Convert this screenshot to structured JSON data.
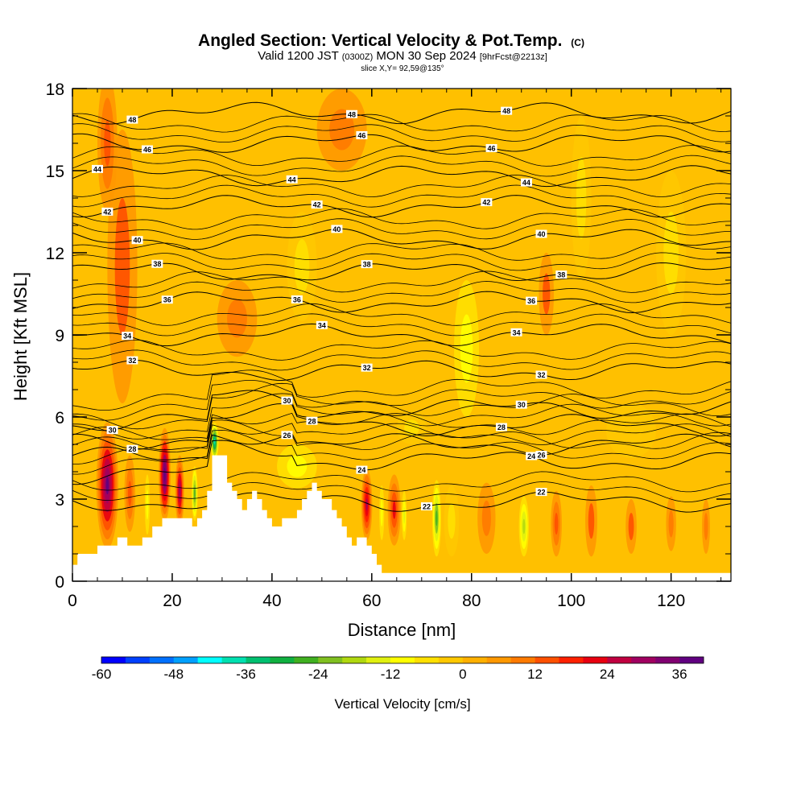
{
  "title": {
    "main": "Angled Section: Vertical Velocity & Pot.Temp.",
    "main_suffix": "(C)",
    "valid_prefix": "Valid 1200 JST",
    "valid_zulu": "(0300Z)",
    "valid_date": "MON 30 Sep 2024",
    "forecast": "[9hrFcst@2213z]",
    "slice": "slice X,Y= 92,59@135°"
  },
  "chart_data": {
    "type": "heatmap",
    "xlabel": "Distance [nm]",
    "ylabel": "Height [Kft MSL]",
    "xlim": [
      0,
      132
    ],
    "ylim": [
      0,
      18
    ],
    "x_ticks": [
      0,
      20,
      40,
      60,
      80,
      100,
      120
    ],
    "y_ticks": [
      0,
      3,
      6,
      9,
      12,
      15,
      18
    ],
    "colorbar": {
      "label": "Vertical Velocity [cm/s]",
      "range": [
        -60,
        40
      ],
      "tick_values": [
        -60,
        -48,
        -36,
        -24,
        -12,
        0,
        12,
        24,
        36
      ],
      "colors": [
        "#0000ff",
        "#0040ff",
        "#0070ff",
        "#00a0ff",
        "#00ffff",
        "#00e0b0",
        "#00c070",
        "#10b040",
        "#40b020",
        "#80c020",
        "#b0d810",
        "#e0f010",
        "#ffff00",
        "#ffe000",
        "#ffc800",
        "#ffb000",
        "#ff9800",
        "#ff7a00",
        "#ff5000",
        "#ff2000",
        "#e80010",
        "#c00040",
        "#a00060",
        "#800070",
        "#600080"
      ]
    },
    "terrain_profile": {
      "x": [
        0,
        1,
        1,
        5,
        5,
        9,
        9,
        11,
        11,
        14,
        14,
        16,
        16,
        18,
        18,
        24,
        24,
        25,
        25,
        26,
        26,
        27,
        27,
        28,
        28,
        31,
        31,
        32,
        32,
        33,
        33,
        34,
        34,
        35,
        35,
        36,
        36,
        37,
        37,
        38,
        38,
        39,
        39,
        40,
        40,
        42,
        42,
        45,
        45,
        46,
        46,
        47,
        47,
        48,
        48,
        49,
        49,
        50,
        50,
        52,
        52,
        53,
        53,
        54,
        54,
        55,
        55,
        56,
        56,
        57,
        57,
        59,
        59,
        60,
        60,
        61,
        61,
        62,
        62,
        66,
        66,
        67,
        67,
        68,
        68,
        131,
        131,
        132
      ],
      "y": [
        0.6,
        0.6,
        1.0,
        1.0,
        1.3,
        1.3,
        1.6,
        1.6,
        1.3,
        1.3,
        1.6,
        1.6,
        2.0,
        2.0,
        2.3,
        2.3,
        2.0,
        2.0,
        2.3,
        2.3,
        2.6,
        2.6,
        3.3,
        3.3,
        4.6,
        4.6,
        3.6,
        3.6,
        3.3,
        3.3,
        3.0,
        3.0,
        2.6,
        2.6,
        3.0,
        3.0,
        3.3,
        3.3,
        3.0,
        3.0,
        2.6,
        2.6,
        2.3,
        2.3,
        2.0,
        2.0,
        2.3,
        2.3,
        2.6,
        2.6,
        3.0,
        3.0,
        3.3,
        3.3,
        3.6,
        3.6,
        3.3,
        3.3,
        3.0,
        3.0,
        2.6,
        2.6,
        2.3,
        2.3,
        2.0,
        2.0,
        1.6,
        1.6,
        1.3,
        1.3,
        1.6,
        1.6,
        1.3,
        1.3,
        1.0,
        1.0,
        0.6,
        0.6,
        0.3,
        0.3,
        0.3,
        0.3,
        0.3,
        0.3,
        0.3,
        0.3,
        0.3,
        0.3
      ]
    },
    "velocity_features": [
      {
        "x": 7,
        "y": 3.5,
        "rx": 2.2,
        "ry": 2.3,
        "w": 36
      },
      {
        "x": 11.5,
        "y": 3.2,
        "rx": 1.1,
        "ry": 1.4,
        "w": 14
      },
      {
        "x": 15,
        "y": 2.8,
        "rx": 0.5,
        "ry": 1.1,
        "w": -12
      },
      {
        "x": 18.5,
        "y": 3.9,
        "rx": 1.2,
        "ry": 1.7,
        "w": 40
      },
      {
        "x": 21.5,
        "y": 3.3,
        "rx": 0.9,
        "ry": 1.3,
        "w": 30
      },
      {
        "x": 24.5,
        "y": 3.2,
        "rx": 0.6,
        "ry": 1.0,
        "w": -28
      },
      {
        "x": 28.5,
        "y": 5.1,
        "rx": 0.8,
        "ry": 0.7,
        "w": -40
      },
      {
        "x": 59,
        "y": 2.8,
        "rx": 1.1,
        "ry": 1.3,
        "w": 28
      },
      {
        "x": 62,
        "y": 2.5,
        "rx": 0.5,
        "ry": 1.0,
        "w": -10
      },
      {
        "x": 64.5,
        "y": 2.6,
        "rx": 1.3,
        "ry": 1.3,
        "w": 20
      },
      {
        "x": 66.5,
        "y": 2.4,
        "rx": 0.5,
        "ry": 0.9,
        "w": -14
      },
      {
        "x": 73,
        "y": 2.3,
        "rx": 0.9,
        "ry": 1.4,
        "w": -26
      },
      {
        "x": 76,
        "y": 2.2,
        "rx": 1.5,
        "ry": 1.3,
        "w": -8
      },
      {
        "x": 90.5,
        "y": 2.0,
        "rx": 1.0,
        "ry": 1.1,
        "w": -18
      },
      {
        "x": 83,
        "y": 2.3,
        "rx": 1.8,
        "ry": 1.3,
        "w": 8
      },
      {
        "x": 97,
        "y": 2.1,
        "rx": 1.1,
        "ry": 1.2,
        "w": 14
      },
      {
        "x": 104,
        "y": 2.2,
        "rx": 1.2,
        "ry": 1.3,
        "w": 12
      },
      {
        "x": 112,
        "y": 2.0,
        "rx": 1.1,
        "ry": 1.0,
        "w": 12
      },
      {
        "x": 120,
        "y": 2.1,
        "rx": 1.0,
        "ry": 1.0,
        "w": 10
      },
      {
        "x": 127,
        "y": 2.0,
        "rx": 0.8,
        "ry": 1.0,
        "w": 10
      },
      {
        "x": 10,
        "y": 11.5,
        "rx": 3.0,
        "ry": 5.0,
        "w": 12
      },
      {
        "x": 7,
        "y": 16.0,
        "rx": 2.0,
        "ry": 2.5,
        "w": 14
      },
      {
        "x": 33,
        "y": 9.6,
        "rx": 4.0,
        "ry": 1.4,
        "w": 10
      },
      {
        "x": 54,
        "y": 16.5,
        "rx": 5.0,
        "ry": 1.5,
        "w": 8
      },
      {
        "x": 79,
        "y": 8.5,
        "rx": 2.5,
        "ry": 2.5,
        "w": -10
      },
      {
        "x": 46,
        "y": 11.5,
        "rx": 3.0,
        "ry": 2.0,
        "w": -6
      },
      {
        "x": 102,
        "y": 14.0,
        "rx": 2.0,
        "ry": 3.0,
        "w": -8
      },
      {
        "x": 120,
        "y": 12.0,
        "rx": 3.0,
        "ry": 3.0,
        "w": -6
      },
      {
        "x": 68,
        "y": 5.6,
        "rx": 3.0,
        "ry": 0.6,
        "w": -8
      },
      {
        "x": 45,
        "y": 4.2,
        "rx": 4.0,
        "ry": 0.8,
        "w": -10
      },
      {
        "x": 95,
        "y": 10.5,
        "rx": 1.5,
        "ry": 1.5,
        "w": 12
      },
      {
        "x": 112,
        "y": 5.5,
        "rx": 5.0,
        "ry": 1.0,
        "w": -4
      }
    ],
    "theta_contours": [
      {
        "value": 22,
        "label_x": [
          71,
          94
        ]
      },
      {
        "value": 24,
        "label_x": [
          58,
          92
        ]
      },
      {
        "value": 26,
        "label_x": [
          43,
          94
        ]
      },
      {
        "value": 28,
        "label_x": [
          12,
          48,
          86
        ]
      },
      {
        "value": 30,
        "label_x": [
          8,
          43,
          90
        ]
      },
      {
        "value": 32,
        "label_x": [
          12,
          59,
          94
        ]
      },
      {
        "value": 34,
        "label_x": [
          11,
          50,
          89
        ]
      },
      {
        "value": 36,
        "label_x": [
          19,
          45,
          92
        ]
      },
      {
        "value": 38,
        "label_x": [
          17,
          59,
          98
        ]
      },
      {
        "value": 40,
        "label_x": [
          13,
          53,
          94
        ]
      },
      {
        "value": 42,
        "label_x": [
          7,
          49,
          83
        ]
      },
      {
        "value": 44,
        "label_x": [
          5,
          44,
          91
        ]
      },
      {
        "value": 46,
        "label_x": [
          15,
          58,
          84
        ]
      },
      {
        "value": 48,
        "label_x": [
          12,
          56,
          87
        ]
      }
    ]
  }
}
